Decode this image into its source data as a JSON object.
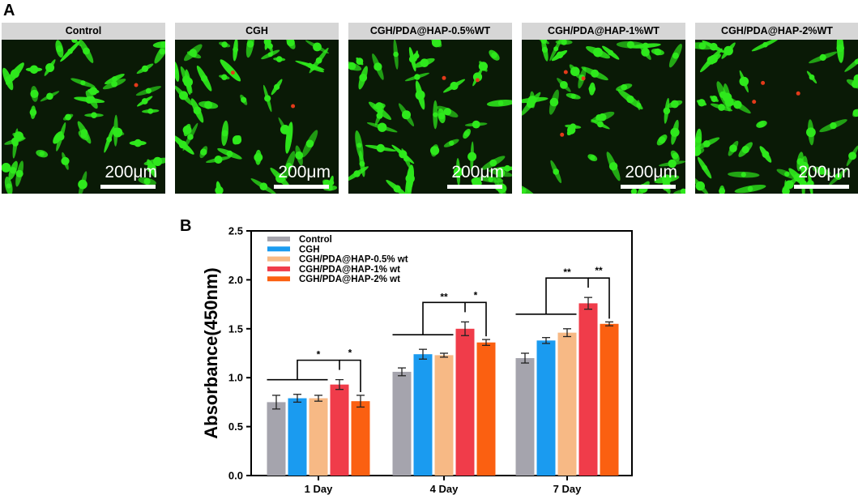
{
  "figure": {
    "panel_a_label": "A",
    "panel_b_label": "B"
  },
  "panel_a": {
    "images": [
      {
        "label": "Control",
        "scale_text": "200μm",
        "red_cells": 1
      },
      {
        "label": "CGH",
        "scale_text": "200μm",
        "red_cells": 2
      },
      {
        "label": "CGH/PDA@HAP-0.5%WT",
        "scale_text": "200μm",
        "red_cells": 2
      },
      {
        "label": "CGH/PDA@HAP-1%WT",
        "scale_text": "200μm",
        "red_cells": 3
      },
      {
        "label": "CGH/PDA@HAP-2%WT",
        "scale_text": "200μm",
        "red_cells": 3
      }
    ],
    "colors": {
      "cell": "#2ee81c",
      "background": "#0a1a06",
      "dead_cell": "#e33a1a"
    }
  },
  "chart_data": {
    "type": "bar",
    "title": "",
    "xlabel": "",
    "ylabel": "Absorbance(450nm)",
    "ylim": [
      0,
      2.5
    ],
    "yticks": [
      "0.0",
      "0.5",
      "1.0",
      "1.5",
      "2.0",
      "2.5"
    ],
    "categories": [
      "1 Day",
      "4 Day",
      "7 Day"
    ],
    "legend_position": "top-left",
    "series": [
      {
        "name": "Control",
        "color": "#a5a4ad",
        "values": [
          0.75,
          1.06,
          1.2
        ],
        "errors": [
          0.07,
          0.04,
          0.05
        ]
      },
      {
        "name": "CGH",
        "color": "#1a9bf0",
        "values": [
          0.79,
          1.24,
          1.38
        ],
        "errors": [
          0.04,
          0.05,
          0.03
        ]
      },
      {
        "name": "CGH/PDA@HAP-0.5% wt",
        "color": "#f7b985",
        "values": [
          0.79,
          1.23,
          1.46
        ],
        "errors": [
          0.03,
          0.02,
          0.04
        ]
      },
      {
        "name": "CGH/PDA@HAP-1% wt",
        "color": "#f03c4a",
        "values": [
          0.93,
          1.5,
          1.76
        ],
        "errors": [
          0.05,
          0.07,
          0.06
        ]
      },
      {
        "name": "CGH/PDA@HAP-2% wt",
        "color": "#fb6011",
        "values": [
          0.76,
          1.36,
          1.55
        ],
        "errors": [
          0.06,
          0.03,
          0.02
        ]
      }
    ],
    "significance": [
      {
        "group": 0,
        "left_label": "*",
        "right_label": "*"
      },
      {
        "group": 1,
        "left_label": "**",
        "right_label": "*"
      },
      {
        "group": 2,
        "left_label": "**",
        "right_label": "**"
      }
    ]
  }
}
